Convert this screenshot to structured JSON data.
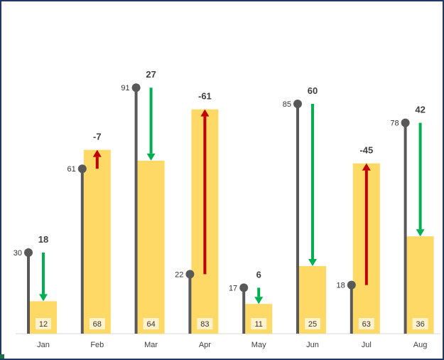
{
  "colors": {
    "bar": "#FFD966",
    "bar_label_box": "#FFF2CC",
    "lollipop": "#595959",
    "arrow_up": "#C00000",
    "arrow_down": "#00B050",
    "axis": "#D9D9D9",
    "border": "#1F3864"
  },
  "chart_data": {
    "type": "bar",
    "categories": [
      "Jan",
      "Feb",
      "Mar",
      "Apr",
      "May",
      "Jun",
      "Jul",
      "Aug"
    ],
    "series": [
      {
        "values": [
          12,
          68,
          64,
          83,
          11,
          25,
          63,
          36
        ]
      },
      {
        "values": [
          30,
          61,
          91,
          22,
          17,
          85,
          18,
          78
        ]
      }
    ],
    "differences": [
      18,
      -7,
      27,
      -61,
      6,
      60,
      -45,
      42
    ],
    "ylim": [
      0,
      100
    ],
    "grid": false,
    "legend": "none",
    "title": "",
    "xlabel": "",
    "ylabel": ""
  }
}
